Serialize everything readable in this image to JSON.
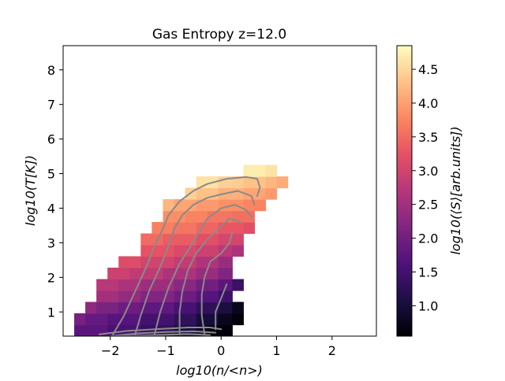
{
  "chart_data": {
    "type": "heatmap",
    "title": "Gas Entropy z=12.0",
    "xlabel": "log10(n/<n>)",
    "ylabel": "log10(T[K])",
    "colorbar_label": "log10(⟨S⟩[arb.units])",
    "xlim": [
      -2.85,
      2.8
    ],
    "ylim": [
      0.3,
      8.7
    ],
    "xticks": [
      -2,
      -1,
      0,
      1,
      2
    ],
    "yticks": [
      1,
      2,
      3,
      4,
      5,
      6,
      7,
      8
    ],
    "colorbar_range": [
      0.55,
      4.85
    ],
    "colorbar_ticks": [
      1.0,
      1.5,
      2.0,
      2.5,
      3.0,
      3.5,
      4.0,
      4.5
    ],
    "colormap": "magma",
    "bin_width_x": 0.2,
    "bin_height_y": 0.33,
    "x_bin_start": -2.65,
    "y_bin_start": 0.3,
    "rows": [
      {
        "row": 0,
        "bins": [
          [
            -2.65,
            -2.05,
            1.75
          ],
          [
            -2.05,
            -1.45,
            1.55
          ],
          [
            -1.45,
            -0.85,
            1.35
          ],
          [
            -0.85,
            -0.45,
            1.1
          ],
          [
            -0.45,
            -0.25,
            0.85
          ],
          [
            -0.25,
            0.05,
            0.6
          ],
          [
            0.05,
            0.2,
            0.6
          ]
        ]
      },
      {
        "row": 1,
        "bins": [
          [
            -2.65,
            -2.45,
            2.05
          ],
          [
            -2.45,
            -2.05,
            1.85
          ],
          [
            -2.05,
            -1.45,
            1.7
          ],
          [
            -1.45,
            -0.85,
            1.5
          ],
          [
            -0.85,
            -0.45,
            1.3
          ],
          [
            -0.45,
            -0.05,
            1.0
          ],
          [
            -0.05,
            0.2,
            0.75
          ],
          [
            0.2,
            0.4,
            0.6
          ]
        ]
      },
      {
        "row": 2,
        "bins": [
          [
            -2.45,
            -2.25,
            2.3
          ],
          [
            -2.25,
            -1.85,
            2.1
          ],
          [
            -1.85,
            -1.45,
            1.95
          ],
          [
            -1.45,
            -0.85,
            1.8
          ],
          [
            -0.85,
            -0.45,
            1.55
          ],
          [
            -0.45,
            -0.05,
            1.3
          ],
          [
            -0.05,
            0.2,
            1.05
          ],
          [
            0.2,
            0.4,
            0.75
          ]
        ]
      },
      {
        "row": 3,
        "bins": [
          [
            -2.25,
            -1.85,
            2.5
          ],
          [
            -1.85,
            -1.45,
            2.35
          ],
          [
            -1.45,
            -0.85,
            2.15
          ],
          [
            -0.85,
            -0.45,
            1.95
          ],
          [
            -0.45,
            -0.05,
            1.7
          ],
          [
            -0.05,
            0.2,
            1.45
          ]
        ]
      },
      {
        "row": 4,
        "bins": [
          [
            -2.25,
            -1.85,
            2.75
          ],
          [
            -1.85,
            -1.45,
            2.6
          ],
          [
            -1.45,
            -0.85,
            2.45
          ],
          [
            -0.85,
            -0.45,
            2.25
          ],
          [
            -0.45,
            -0.05,
            2.0
          ],
          [
            -0.05,
            0.2,
            1.75
          ],
          [
            0.2,
            0.4,
            1.4
          ]
        ]
      },
      {
        "row": 5,
        "bins": [
          [
            -2.05,
            -1.65,
            2.95
          ],
          [
            -1.65,
            -1.05,
            2.8
          ],
          [
            -1.05,
            -0.45,
            2.6
          ],
          [
            -0.45,
            -0.05,
            2.4
          ],
          [
            -0.05,
            0.2,
            2.15
          ]
        ]
      },
      {
        "row": 6,
        "bins": [
          [
            -1.85,
            -1.45,
            3.15
          ],
          [
            -1.45,
            -0.85,
            3.0
          ],
          [
            -0.85,
            -0.45,
            2.85
          ],
          [
            -0.45,
            -0.05,
            2.65
          ],
          [
            -0.05,
            0.2,
            2.4
          ]
        ]
      },
      {
        "row": 7,
        "bins": [
          [
            -1.45,
            -0.85,
            3.25
          ],
          [
            -0.85,
            -0.45,
            3.1
          ],
          [
            -0.45,
            -0.05,
            2.95
          ],
          [
            -0.05,
            0.2,
            2.75
          ],
          [
            0.2,
            0.4,
            2.6
          ]
        ]
      },
      {
        "row": 8,
        "bins": [
          [
            -1.45,
            -1.05,
            3.5
          ],
          [
            -1.05,
            -0.45,
            3.35
          ],
          [
            -0.45,
            -0.05,
            3.2
          ],
          [
            -0.05,
            0.4,
            3.05
          ]
        ]
      },
      {
        "row": 9,
        "bins": [
          [
            -1.25,
            -0.85,
            3.7
          ],
          [
            -0.85,
            -0.45,
            3.6
          ],
          [
            -0.45,
            -0.05,
            3.45
          ],
          [
            -0.05,
            0.4,
            3.3
          ],
          [
            0.4,
            0.6,
            3.2
          ]
        ]
      },
      {
        "row": 10,
        "bins": [
          [
            -1.05,
            -0.65,
            3.85
          ],
          [
            -0.65,
            -0.25,
            3.75
          ],
          [
            -0.25,
            0.2,
            3.6
          ],
          [
            0.2,
            0.6,
            3.55
          ]
        ]
      },
      {
        "row": 11,
        "bins": [
          [
            -1.05,
            -0.85,
            4.2
          ],
          [
            -0.85,
            -0.45,
            4.05
          ],
          [
            -0.45,
            -0.05,
            3.95
          ],
          [
            -0.05,
            0.4,
            3.85
          ],
          [
            0.4,
            0.8,
            3.75
          ]
        ]
      },
      {
        "row": 12,
        "bins": [
          [
            -0.65,
            -0.45,
            4.45
          ],
          [
            -0.45,
            -0.05,
            4.3
          ],
          [
            -0.05,
            0.4,
            4.15
          ],
          [
            0.4,
            0.8,
            4.05
          ],
          [
            0.8,
            1.0,
            3.95
          ]
        ]
      },
      {
        "row": 13,
        "bins": [
          [
            -0.45,
            -0.05,
            4.6
          ],
          [
            -0.05,
            0.2,
            4.45
          ],
          [
            0.2,
            0.4,
            4.4
          ],
          [
            0.4,
            0.8,
            4.3
          ],
          [
            0.8,
            1.0,
            4.2
          ],
          [
            1.0,
            1.2,
            4.1
          ]
        ]
      },
      {
        "row": 14,
        "bins": [
          [
            0.4,
            0.8,
            4.7
          ],
          [
            0.8,
            1.0,
            4.6
          ]
        ]
      }
    ],
    "contours": [
      [
        [
          -1.95,
          0.35
        ],
        [
          -1.75,
          0.9
        ],
        [
          -1.55,
          1.6
        ],
        [
          -1.35,
          2.3
        ],
        [
          -1.2,
          2.9
        ],
        [
          -1.05,
          3.4
        ],
        [
          -0.95,
          3.8
        ],
        [
          -0.75,
          4.2
        ],
        [
          -0.5,
          4.5
        ],
        [
          -0.25,
          4.7
        ],
        [
          0.1,
          4.85
        ],
        [
          0.45,
          4.9
        ],
        [
          0.65,
          4.85
        ],
        [
          0.7,
          4.6
        ],
        [
          0.65,
          4.35
        ]
      ],
      [
        [
          -1.55,
          0.35
        ],
        [
          -1.45,
          0.9
        ],
        [
          -1.3,
          1.6
        ],
        [
          -1.1,
          2.3
        ],
        [
          -0.95,
          2.9
        ],
        [
          -0.85,
          3.4
        ],
        [
          -0.7,
          3.8
        ],
        [
          -0.5,
          4.1
        ],
        [
          -0.25,
          4.3
        ],
        [
          0.0,
          4.4
        ],
        [
          0.3,
          4.5
        ],
        [
          0.55,
          4.35
        ],
        [
          0.6,
          4.1
        ]
      ],
      [
        [
          -1.2,
          0.35
        ],
        [
          -1.1,
          1.0
        ],
        [
          -0.95,
          1.7
        ],
        [
          -0.75,
          2.4
        ],
        [
          -0.55,
          2.9
        ],
        [
          -0.4,
          3.3
        ],
        [
          -0.25,
          3.7
        ],
        [
          0.0,
          4.0
        ],
        [
          0.25,
          4.1
        ],
        [
          0.45,
          3.95
        ],
        [
          0.55,
          3.75
        ]
      ],
      [
        [
          -0.75,
          0.35
        ],
        [
          -0.75,
          1.0
        ],
        [
          -0.7,
          1.6
        ],
        [
          -0.6,
          2.2
        ],
        [
          -0.45,
          2.7
        ],
        [
          -0.25,
          3.1
        ],
        [
          -0.05,
          3.4
        ],
        [
          0.15,
          3.7
        ],
        [
          0.35,
          3.6
        ]
      ],
      [
        [
          -0.3,
          0.35
        ],
        [
          -0.35,
          0.9
        ],
        [
          -0.35,
          1.5
        ],
        [
          -0.3,
          2.0
        ],
        [
          -0.2,
          2.45
        ],
        [
          0.0,
          2.7
        ],
        [
          0.15,
          3.0
        ],
        [
          0.2,
          3.3
        ]
      ],
      [
        [
          -0.1,
          0.5
        ],
        [
          -0.1,
          1.0
        ],
        [
          0.0,
          1.4
        ],
        [
          0.1,
          1.8
        ]
      ],
      [
        [
          -2.2,
          0.35
        ],
        [
          -1.7,
          0.45
        ],
        [
          -1.2,
          0.5
        ],
        [
          -0.6,
          0.55
        ],
        [
          -0.2,
          0.55
        ],
        [
          0.0,
          0.5
        ]
      ],
      [
        [
          -2.0,
          0.3
        ],
        [
          -1.5,
          0.38
        ],
        [
          -1.0,
          0.42
        ],
        [
          -0.5,
          0.44
        ],
        [
          -0.1,
          0.4
        ]
      ],
      [
        [
          -1.8,
          0.3
        ],
        [
          -1.2,
          0.33
        ],
        [
          -0.6,
          0.36
        ],
        [
          -0.2,
          0.33
        ]
      ]
    ]
  }
}
